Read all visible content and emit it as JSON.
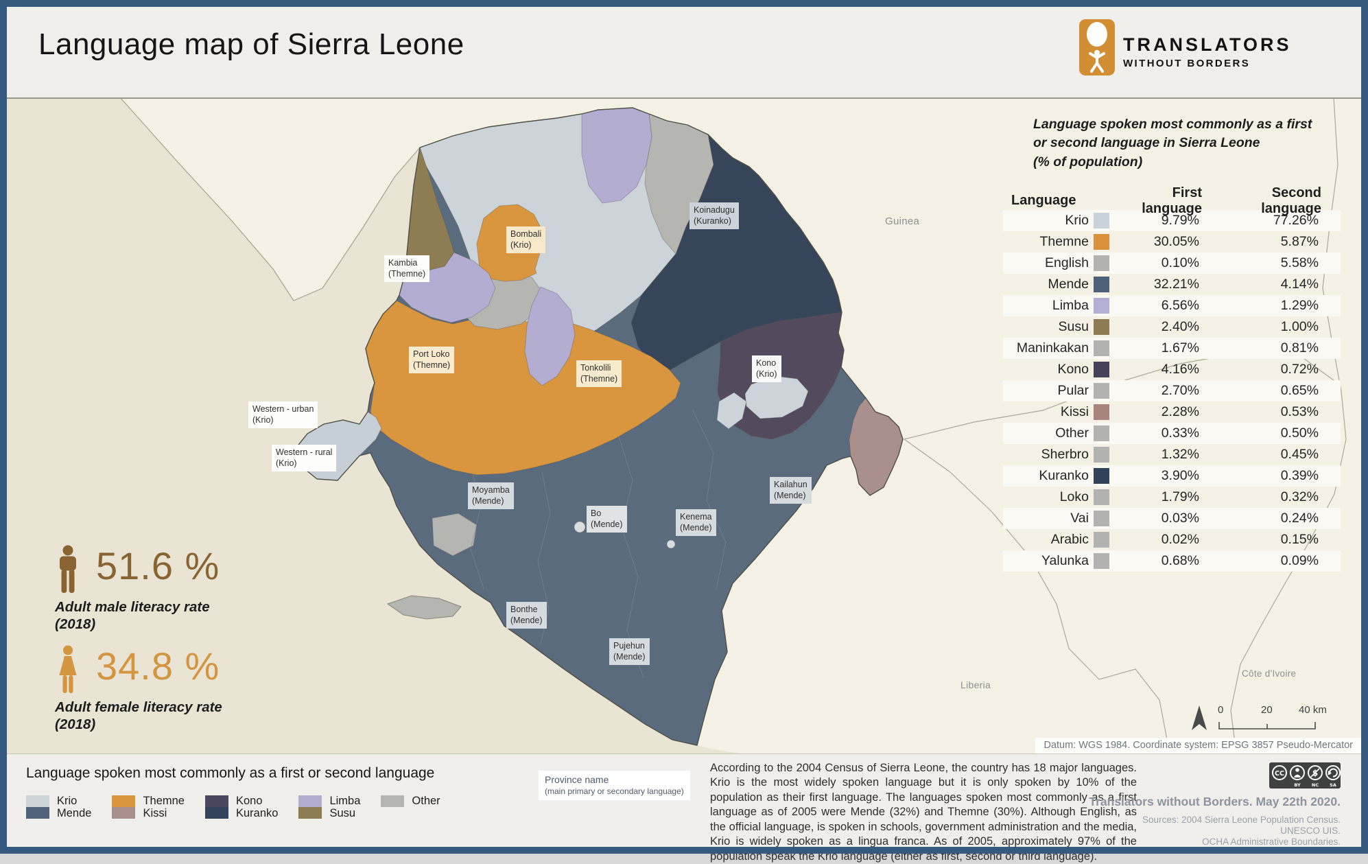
{
  "header": {
    "title": "Language map of Sierra Leone",
    "logo_line1": "TRANSLATORS",
    "logo_line2": "WITHOUT BORDERS"
  },
  "palette": {
    "krio": "#ccd4da",
    "mende": "#5b6b7e",
    "themne": "#d9963f",
    "kissi": "#a9908c",
    "kono": "#544a5e",
    "kuranko": "#37455b",
    "limba": "#b4add2",
    "susu": "#8e7c52",
    "other": "#b5b5b2",
    "western_urban": "#9aa0a8",
    "western_rural": "#c6ced6",
    "town_dot": "#d9dde0",
    "land": "#f5f1e4",
    "ocean": "#e9e4d3"
  },
  "table": {
    "title_lines": [
      "Language spoken most commonly as a first",
      "or second language in Sierra Leone",
      "(% of population)"
    ],
    "columns": [
      "Language",
      "First language",
      "Second language"
    ],
    "rows": [
      {
        "language": "Krio",
        "color": "#c9d2d8",
        "first": "9.79%",
        "second": "77.26%"
      },
      {
        "language": "Themne",
        "color": "#d8903a",
        "first": "30.05%",
        "second": "5.87%"
      },
      {
        "language": "English",
        "color": "#b2b3b0",
        "first": "0.10%",
        "second": "5.58%"
      },
      {
        "language": "Mende",
        "color": "#4d6077",
        "first": "32.21%",
        "second": "4.14%"
      },
      {
        "language": "Limba",
        "color": "#b3aed3",
        "first": "6.56%",
        "second": "1.29%"
      },
      {
        "language": "Susu",
        "color": "#8f7b51",
        "first": "2.40%",
        "second": "1.00%"
      },
      {
        "language": "Maninkakan",
        "color": "#b2b3b0",
        "first": "1.67%",
        "second": "0.81%"
      },
      {
        "language": "Kono",
        "color": "#454259",
        "first": "4.16%",
        "second": "0.72%"
      },
      {
        "language": "Pular",
        "color": "#b2b3b0",
        "first": "2.70%",
        "second": "0.65%"
      },
      {
        "language": "Kissi",
        "color": "#a8847f",
        "first": "2.28%",
        "second": "0.53%"
      },
      {
        "language": "Other",
        "color": "#b2b3b0",
        "first": "0.33%",
        "second": "0.50%"
      },
      {
        "language": "Sherbro",
        "color": "#b2b3b0",
        "first": "1.32%",
        "second": "0.45%"
      },
      {
        "language": "Kuranko",
        "color": "#32425b",
        "first": "3.90%",
        "second": "0.39%"
      },
      {
        "language": "Loko",
        "color": "#b2b3b0",
        "first": "1.79%",
        "second": "0.32%"
      },
      {
        "language": "Vai",
        "color": "#b2b3b0",
        "first": "0.03%",
        "second": "0.24%"
      },
      {
        "language": "Arabic",
        "color": "#b2b3b0",
        "first": "0.02%",
        "second": "0.15%"
      },
      {
        "language": "Yalunka",
        "color": "#b2b3b0",
        "first": "0.68%",
        "second": "0.09%"
      }
    ]
  },
  "chart_data": {
    "type": "table",
    "title": "Language spoken most commonly as a first or second language in Sierra Leone (% of population)",
    "categories": [
      "Krio",
      "Themne",
      "English",
      "Mende",
      "Limba",
      "Susu",
      "Maninkakan",
      "Kono",
      "Pular",
      "Kissi",
      "Other",
      "Sherbro",
      "Kuranko",
      "Loko",
      "Vai",
      "Arabic",
      "Yalunka"
    ],
    "series": [
      {
        "name": "First language",
        "values": [
          9.79,
          30.05,
          0.1,
          32.21,
          6.56,
          2.4,
          1.67,
          4.16,
          2.7,
          2.28,
          0.33,
          1.32,
          3.9,
          1.79,
          0.03,
          0.02,
          0.68
        ]
      },
      {
        "name": "Second language",
        "values": [
          77.26,
          5.87,
          5.58,
          4.14,
          1.29,
          1.0,
          0.81,
          0.72,
          0.65,
          0.53,
          0.5,
          0.45,
          0.39,
          0.32,
          0.24,
          0.15,
          0.09
        ]
      }
    ]
  },
  "literacy": {
    "male": {
      "value": "51.6 %",
      "label_line1": "Adult male literacy rate",
      "label_line2": "(2018)"
    },
    "female": {
      "value": "34.8 %",
      "label_line1": "Adult female literacy rate",
      "label_line2": "(2018)"
    }
  },
  "map": {
    "labels": [
      {
        "name": "Kambia",
        "lang": "(Themne)"
      },
      {
        "name": "Bombali",
        "lang": "(Krio)"
      },
      {
        "name": "Koinadugu",
        "lang": "(Kuranko)"
      },
      {
        "name": "Port Loko",
        "lang": "(Themne)"
      },
      {
        "name": "Tonkolili",
        "lang": "(Themne)"
      },
      {
        "name": "Kono",
        "lang": "(Krio)"
      },
      {
        "name": "Western - urban",
        "lang": "(Krio)"
      },
      {
        "name": "Western - rural",
        "lang": "(Krio)"
      },
      {
        "name": "Moyamba",
        "lang": "(Mende)"
      },
      {
        "name": "Bo",
        "lang": "(Mende)"
      },
      {
        "name": "Kenema",
        "lang": "(Mende)"
      },
      {
        "name": "Kailahun",
        "lang": "(Mende)"
      },
      {
        "name": "Bonthe",
        "lang": "(Mende)"
      },
      {
        "name": "Pujehun",
        "lang": "(Mende)"
      }
    ],
    "countries": {
      "guinea": "Guinea",
      "liberia": "Liberia",
      "cotedivoire": "Côte d'Ivoire"
    },
    "scale": {
      "tick0": "0",
      "tick1": "20",
      "tick2": "40 km"
    },
    "datum": "Datum: WGS 1984. Coordinate system: EPSG 3857 Pseudo-Mercator"
  },
  "legend": {
    "title": "Language spoken most commonly as a first or second language",
    "groups": [
      {
        "labels": [
          "Krio",
          "Mende"
        ],
        "colors": [
          "#ccd4da",
          "#52647a"
        ]
      },
      {
        "labels": [
          "Themne",
          "Kissi"
        ],
        "colors": [
          "#d9963f",
          "#a9908c"
        ]
      },
      {
        "labels": [
          "Kono",
          "Kuranko"
        ],
        "colors": [
          "#49465e",
          "#33435c"
        ]
      },
      {
        "labels": [
          "Limba",
          "Susu"
        ],
        "colors": [
          "#b4add2",
          "#8e7c52"
        ]
      },
      {
        "labels": [
          "Other"
        ],
        "colors": [
          "#b5b5b2"
        ]
      }
    ]
  },
  "annotation": {
    "line1": "Province name",
    "line2": "(main primary or secondary language)"
  },
  "description": "According to the 2004 Census of Sierra Leone, the country has 18 major languages. Krio is the most widely spoken language but it is only spoken by 10% of the population as their first language. The languages spoken most commonly as a first language as of 2005 were Mende (32%) and Themne (30%). Although English, as the official language, is spoken in schools, government administration and the media, Krio is widely spoken as a lingua franca. As of 2005, approximately 97% of the population speak the Krio language (either as first, second or third language).",
  "credits": {
    "cc": "CC",
    "license": [
      "BY",
      "NC",
      "SA"
    ],
    "byline": "Translators without Borders. May 22th 2020.",
    "sources": [
      "Sources: 2004 Sierra Leone Population Census.",
      "UNESCO UIS.",
      "OCHA Administrative Boundaries."
    ]
  }
}
